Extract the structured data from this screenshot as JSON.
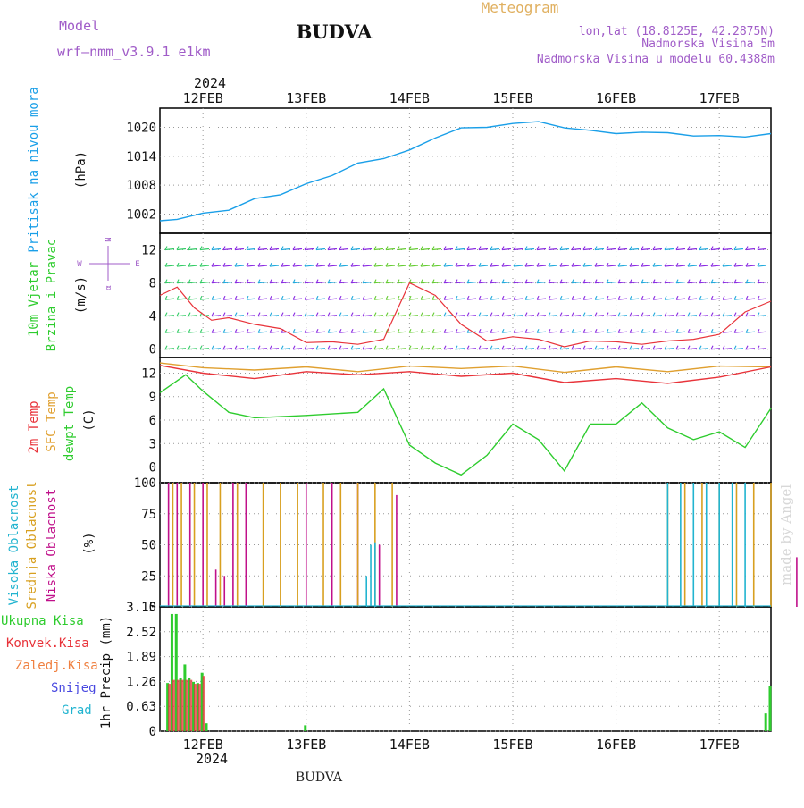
{
  "header": {
    "model_label": "Model",
    "model_name": "wrf—nmm_v3.9.1 e1km",
    "station": "BUDVA",
    "product": "Meteogram",
    "lonlat": "lon,lat (18.8125E, 42.2875N)",
    "elevation": "Nadmorska Visina 5m",
    "model_elevation": "Nadmorska Visina u modelu 60.4388m",
    "credit": "made by Angel",
    "footer_station": "BUDVA"
  },
  "colors": {
    "pressure": "#1a9fe8",
    "temp2m": "#e8333a",
    "sfc_temp": "#e0a030",
    "dewpoint": "#2ecc2e",
    "high_cloud": "#22b4d0",
    "mid_cloud": "#d8a020",
    "low_cloud": "#c0108a",
    "total_precip": "#2ecc2e",
    "conv_precip": "#e8333a",
    "wind_speed": "#e8333a",
    "wind_barbs": "#8a2be2"
  },
  "time_axis": {
    "year": "2024",
    "days": [
      "12FEB",
      "13FEB",
      "14FEB",
      "15FEB",
      "16FEB",
      "17FEB"
    ],
    "start": "2024-02-11T14:00",
    "end": "2024-02-17T12:00"
  },
  "panels": {
    "pressure": {
      "ylabel_main": "Pritisak na nivou mora",
      "unit": "(hPa)"
    },
    "wind": {
      "ylabel_lines": [
        "10m Vjetar",
        "Brzina i Pravac"
      ],
      "unit": "(m/s)",
      "compass": [
        "N",
        "E",
        "W",
        "α"
      ]
    },
    "temp": {
      "ylabel_lines": [
        "2m Temp",
        "SFC Temp",
        "dewpt Temp"
      ],
      "unit": "(C)"
    },
    "cloud": {
      "ylabel_lines": [
        "Visoka Oblacnost",
        "Srednja Oblacnost",
        "Niska Oblacnost"
      ],
      "unit": "(%)"
    },
    "precip": {
      "legend": [
        "Ukupna Kisa",
        "Konvek.Kisa",
        "Zaledj.Kisa",
        "Snijeg",
        "Grad"
      ],
      "unit": "1hr Precip (mm)"
    }
  },
  "chart_data": [
    {
      "type": "line",
      "title": "Pritisak na nivou mora",
      "ylabel": "(hPa)",
      "ylim": [
        998,
        1024
      ],
      "yticks": [
        1002,
        1008,
        1014,
        1020
      ],
      "series": [
        {
          "name": "Pritisak na nivou mora",
          "x": [
            "2024-02-11T14:00",
            "2024-02-11T18:00",
            "2024-02-12T00:00",
            "2024-02-12T06:00",
            "2024-02-12T12:00",
            "2024-02-12T18:00",
            "2024-02-13T00:00",
            "2024-02-13T06:00",
            "2024-02-13T12:00",
            "2024-02-13T18:00",
            "2024-02-14T00:00",
            "2024-02-14T06:00",
            "2024-02-14T12:00",
            "2024-02-14T18:00",
            "2024-02-15T00:00",
            "2024-02-15T06:00",
            "2024-02-15T12:00",
            "2024-02-15T18:00",
            "2024-02-16T00:00",
            "2024-02-16T06:00",
            "2024-02-16T12:00",
            "2024-02-16T18:00",
            "2024-02-17T00:00",
            "2024-02-17T06:00",
            "2024-02-17T12:00"
          ],
          "y": [
            1000.6,
            1000.9,
            1002.2,
            1002.8,
            1005.2,
            1006.0,
            1008.3,
            1010.0,
            1012.6,
            1013.5,
            1015.3,
            1017.8,
            1019.9,
            1020.0,
            1020.8,
            1021.2,
            1019.9,
            1019.4,
            1018.7,
            1019.0,
            1018.9,
            1018.2,
            1018.3,
            1018.0,
            1018.7
          ]
        }
      ]
    },
    {
      "type": "line",
      "title": "10m Vjetar Brzina i Pravac",
      "ylabel": "(m/s)",
      "ylim": [
        -1,
        14
      ],
      "yticks": [
        0,
        4,
        8,
        12
      ],
      "series": [
        {
          "name": "10m Vjetar Brzina",
          "x": [
            "2024-02-11T14:00",
            "2024-02-11T18:00",
            "2024-02-11T22:00",
            "2024-02-12T02:00",
            "2024-02-12T06:00",
            "2024-02-12T12:00",
            "2024-02-12T18:00",
            "2024-02-13T00:00",
            "2024-02-13T06:00",
            "2024-02-13T12:00",
            "2024-02-13T18:00",
            "2024-02-14T00:00",
            "2024-02-14T06:00",
            "2024-02-14T12:00",
            "2024-02-14T18:00",
            "2024-02-15T00:00",
            "2024-02-15T06:00",
            "2024-02-15T12:00",
            "2024-02-15T18:00",
            "2024-02-16T00:00",
            "2024-02-16T06:00",
            "2024-02-16T12:00",
            "2024-02-16T18:00",
            "2024-02-17T00:00",
            "2024-02-17T06:00",
            "2024-02-17T12:00"
          ],
          "y": [
            6.5,
            7.5,
            5.0,
            3.5,
            3.8,
            3.0,
            2.5,
            0.8,
            0.9,
            0.6,
            1.2,
            8.0,
            6.5,
            3.0,
            1.0,
            1.5,
            1.2,
            0.3,
            1.0,
            0.9,
            0.6,
            1.0,
            1.2,
            1.8,
            4.5,
            5.8
          ]
        }
      ]
    },
    {
      "type": "line",
      "title": "2m Temp / SFC Temp / dewpt Temp",
      "ylabel": "(C)",
      "ylim": [
        -2,
        14
      ],
      "yticks": [
        0,
        3,
        6,
        9,
        12
      ],
      "series": [
        {
          "name": "2m Temp",
          "x": [
            "2024-02-11T14:00",
            "2024-02-12T00:00",
            "2024-02-12T12:00",
            "2024-02-13T00:00",
            "2024-02-13T12:00",
            "2024-02-14T00:00",
            "2024-02-14T12:00",
            "2024-02-15T00:00",
            "2024-02-15T12:00",
            "2024-02-16T00:00",
            "2024-02-16T12:00",
            "2024-02-17T00:00",
            "2024-02-17T12:00"
          ],
          "y": [
            13.0,
            12.0,
            11.3,
            12.2,
            11.8,
            12.2,
            11.6,
            12.0,
            10.8,
            11.3,
            10.7,
            11.5,
            12.8
          ]
        },
        {
          "name": "SFC Temp",
          "x": [
            "2024-02-11T14:00",
            "2024-02-12T00:00",
            "2024-02-12T12:00",
            "2024-02-13T00:00",
            "2024-02-13T12:00",
            "2024-02-14T00:00",
            "2024-02-14T12:00",
            "2024-02-15T00:00",
            "2024-02-15T12:00",
            "2024-02-16T00:00",
            "2024-02-16T12:00",
            "2024-02-17T00:00",
            "2024-02-17T12:00"
          ],
          "y": [
            13.3,
            12.7,
            12.4,
            12.8,
            12.2,
            12.9,
            12.6,
            12.9,
            12.1,
            12.8,
            12.2,
            12.9,
            12.8
          ]
        },
        {
          "name": "dewpt Temp",
          "x": [
            "2024-02-11T14:00",
            "2024-02-11T20:00",
            "2024-02-12T00:00",
            "2024-02-12T06:00",
            "2024-02-12T12:00",
            "2024-02-13T00:00",
            "2024-02-13T12:00",
            "2024-02-13T18:00",
            "2024-02-14T00:00",
            "2024-02-14T06:00",
            "2024-02-14T12:00",
            "2024-02-14T18:00",
            "2024-02-15T00:00",
            "2024-02-15T06:00",
            "2024-02-15T12:00",
            "2024-02-15T18:00",
            "2024-02-16T00:00",
            "2024-02-16T06:00",
            "2024-02-16T12:00",
            "2024-02-16T18:00",
            "2024-02-17T00:00",
            "2024-02-17T06:00",
            "2024-02-17T12:00"
          ],
          "y": [
            9.5,
            11.8,
            9.7,
            7.0,
            6.3,
            6.6,
            7.0,
            10.0,
            2.8,
            0.5,
            -1.0,
            1.5,
            5.5,
            3.5,
            -0.5,
            5.5,
            5.5,
            8.2,
            5.0,
            3.5,
            4.5,
            2.5,
            7.5
          ]
        }
      ]
    },
    {
      "type": "bar",
      "title": "Visoka / Srednja / Niska Oblacnost",
      "ylabel": "(%)",
      "ylim": [
        0,
        100
      ],
      "yticks": [
        0,
        25,
        50,
        75,
        100
      ],
      "series": [
        {
          "name": "Niska Oblacnost",
          "x": [
            "2024-02-11T16:00",
            "2024-02-11T18:00",
            "2024-02-11T21:00",
            "2024-02-12T00:00",
            "2024-02-12T03:00",
            "2024-02-12T05:00",
            "2024-02-12T07:00",
            "2024-02-12T10:00",
            "2024-02-13T00:00",
            "2024-02-13T06:00",
            "2024-02-13T12:00",
            "2024-02-13T17:00",
            "2024-02-13T21:00",
            "2024-02-17T18:00"
          ],
          "y": [
            100,
            100,
            100,
            100,
            30,
            25,
            100,
            100,
            100,
            100,
            100,
            50,
            90,
            40
          ]
        },
        {
          "name": "Srednja Oblacnost",
          "x": [
            "2024-02-11T17:00",
            "2024-02-11T19:00",
            "2024-02-11T22:00",
            "2024-02-12T01:00",
            "2024-02-12T04:00",
            "2024-02-12T08:00",
            "2024-02-12T14:00",
            "2024-02-12T18:00",
            "2024-02-12T22:00",
            "2024-02-13T04:00",
            "2024-02-13T08:00",
            "2024-02-13T12:00",
            "2024-02-13T16:00",
            "2024-02-13T20:00",
            "2024-02-16T12:00",
            "2024-02-16T16:00",
            "2024-02-16T20:00",
            "2024-02-17T00:00",
            "2024-02-17T04:00",
            "2024-02-17T08:00",
            "2024-02-17T12:00"
          ],
          "y": [
            100,
            100,
            100,
            100,
            100,
            100,
            100,
            100,
            100,
            100,
            100,
            100,
            100,
            100,
            100,
            100,
            100,
            100,
            100,
            100,
            100
          ]
        },
        {
          "name": "Visoka Oblacnost",
          "x": [
            "2024-02-13T14:00",
            "2024-02-13T15:00",
            "2024-02-13T16:00",
            "2024-02-16T12:00",
            "2024-02-16T15:00",
            "2024-02-16T18:00",
            "2024-02-16T21:00",
            "2024-02-17T00:00",
            "2024-02-17T03:00",
            "2024-02-17T06:00"
          ],
          "y": [
            25,
            50,
            52,
            100,
            100,
            100,
            100,
            100,
            100,
            100
          ]
        }
      ]
    },
    {
      "type": "bar",
      "title": "1hr Precip",
      "ylabel": "1hr Precip (mm)",
      "ylim": [
        0,
        3.15
      ],
      "yticks": [
        0,
        0.63,
        1.26,
        1.89,
        2.52,
        3.15
      ],
      "series": [
        {
          "name": "Ukupna Kisa",
          "x": [
            "2024-02-11T16:00",
            "2024-02-11T17:00",
            "2024-02-11T18:00",
            "2024-02-11T19:00",
            "2024-02-11T20:00",
            "2024-02-11T21:00",
            "2024-02-11T22:00",
            "2024-02-11T23:00",
            "2024-02-12T00:00",
            "2024-02-12T01:00",
            "2024-02-13T00:00",
            "2024-02-17T11:00",
            "2024-02-17T12:00"
          ],
          "y": [
            1.22,
            2.97,
            2.97,
            1.36,
            1.69,
            1.36,
            1.25,
            1.22,
            1.48,
            0.2,
            0.15,
            0.45,
            1.15
          ]
        },
        {
          "name": "Konvek.Kisa",
          "x": [
            "2024-02-11T16:00",
            "2024-02-11T17:00",
            "2024-02-11T18:00",
            "2024-02-11T19:00",
            "2024-02-11T20:00",
            "2024-02-11T21:00",
            "2024-02-11T22:00",
            "2024-02-11T23:00",
            "2024-02-12T00:00"
          ],
          "y": [
            1.2,
            1.3,
            1.3,
            1.3,
            1.3,
            1.3,
            1.2,
            1.2,
            1.4
          ]
        }
      ]
    }
  ]
}
